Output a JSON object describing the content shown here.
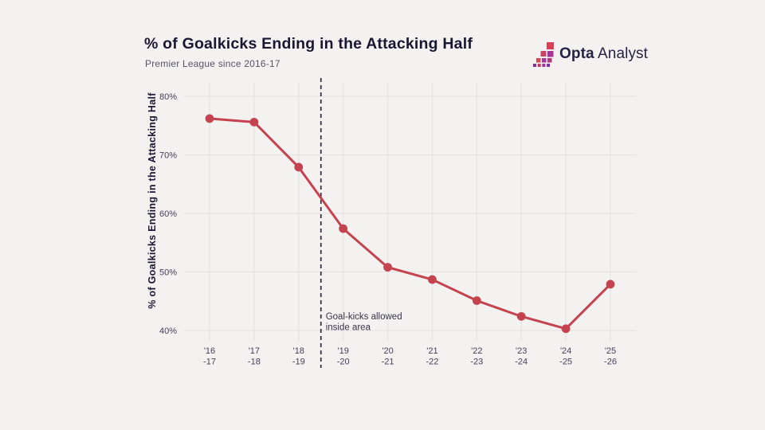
{
  "header": {
    "title": "% of Goalkicks Ending in the Attacking Half",
    "subtitle": "Premier League since 2016-17",
    "brand_bold": "Opta",
    "brand_regular": "Analyst"
  },
  "chart_data": {
    "type": "line",
    "title": "% of Goalkicks Ending in the Attacking Half",
    "subtitle": "Premier League since 2016-17",
    "ylabel": "% of Goalkicks Ending in the Attacking Half",
    "xlabel": "",
    "categories": [
      [
        "'16",
        "-17"
      ],
      [
        "'17",
        "-18"
      ],
      [
        "'18",
        "-19"
      ],
      [
        "'19",
        "-20"
      ],
      [
        "'20",
        "-21"
      ],
      [
        "'21",
        "-22"
      ],
      [
        "'22",
        "-23"
      ],
      [
        "'23",
        "-24"
      ],
      [
        "'24",
        "-25"
      ],
      [
        "'25",
        "-26"
      ]
    ],
    "values": [
      76.2,
      75.6,
      67.9,
      57.4,
      50.8,
      48.7,
      45.1,
      42.4,
      40.3,
      47.9
    ],
    "yticks": [
      40,
      50,
      60,
      70,
      80
    ],
    "ytick_suffix": "%",
    "ylim": [
      38,
      83
    ],
    "grid": true,
    "legend": "none",
    "annotation": {
      "lines": [
        "Goal-kicks allowed",
        "inside area"
      ],
      "style": "vertical-dashed-line",
      "between_categories": [
        "'18-19",
        "'19-20"
      ],
      "between_index": [
        2,
        3
      ]
    },
    "colors": {
      "line": "#c5434e",
      "marker": "#c5434e",
      "grid": "#e5e4e2",
      "dashed_line": "#2e2c3e",
      "title": "#1a1733",
      "subtitle": "#56546b",
      "tick_label": "#413f58",
      "annotation_text": "#353349",
      "background": "#f3f2f0"
    }
  }
}
